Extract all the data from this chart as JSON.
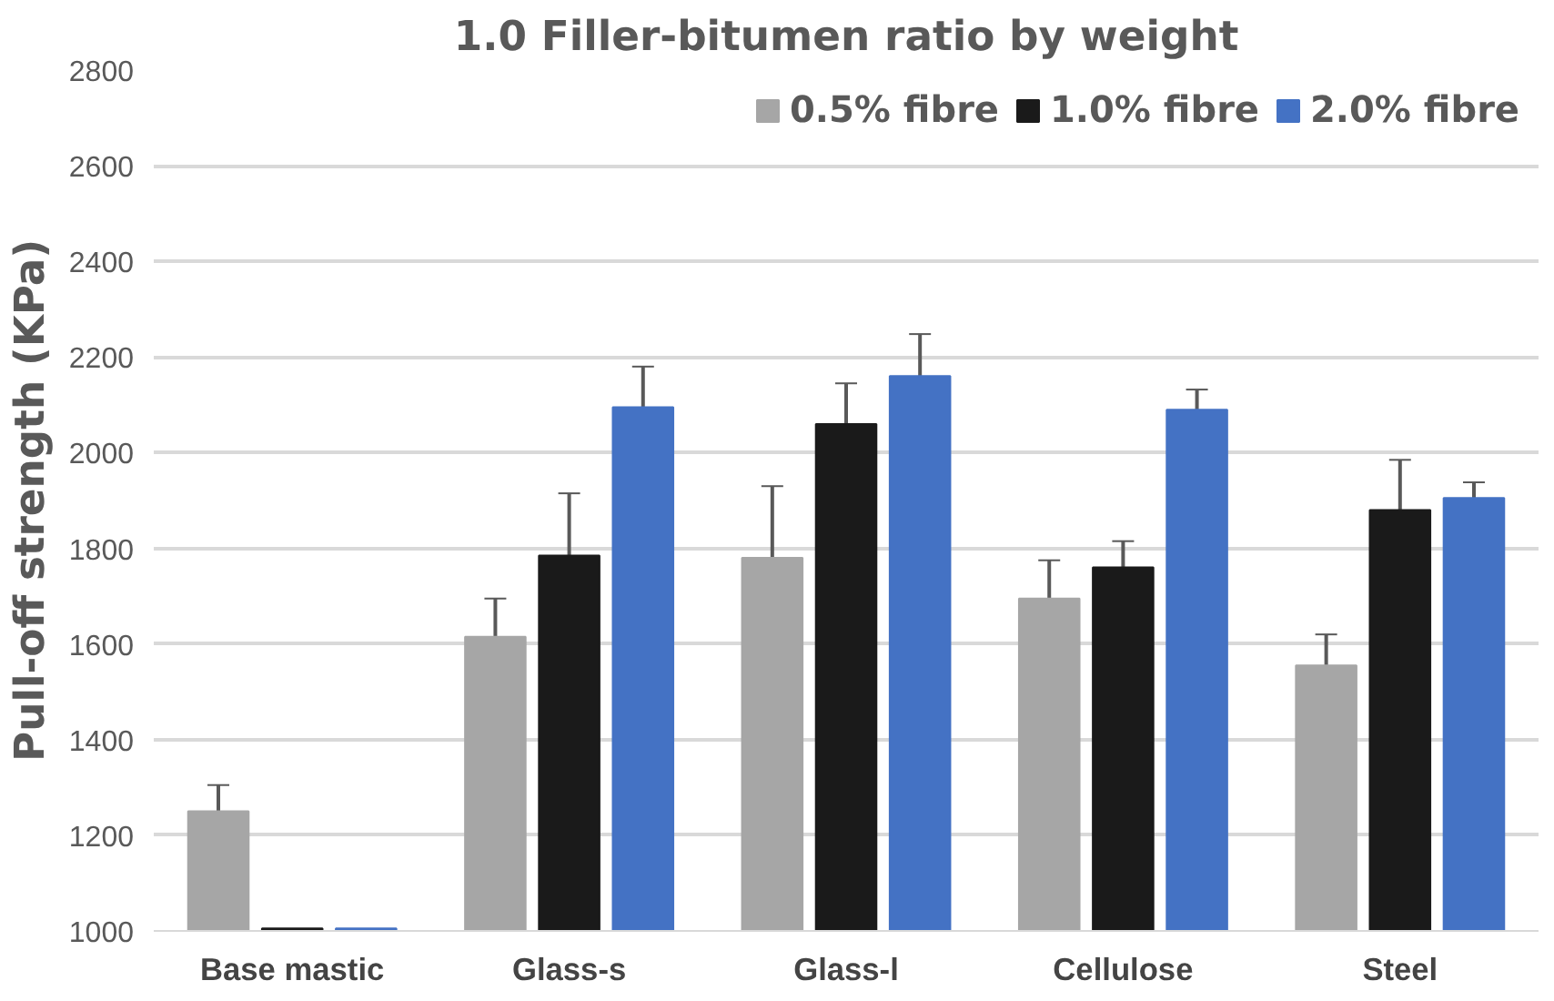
{
  "chart_data": {
    "type": "bar",
    "title": "1.0 Filler-bitumen ratio by weight",
    "ylabel": "Pull-off strength (KPa)",
    "categories": [
      "Base mastic",
      "Glass-s",
      "Glass-l",
      "Cellulose",
      "Steel"
    ],
    "series": [
      {
        "name": "0.5% fibre",
        "color": "#a6a6a6",
        "values": [
          1250,
          1615,
          1780,
          1695,
          1555
        ],
        "errors": [
          55,
          80,
          150,
          80,
          65
        ]
      },
      {
        "name": "1.0% fibre",
        "color": "#1a1a1a",
        "values": [
          1005,
          1785,
          2060,
          1760,
          1880
        ],
        "errors": [
          null,
          130,
          85,
          55,
          105
        ]
      },
      {
        "name": "2.0% fibre",
        "color": "#4472c4",
        "values": [
          1005,
          2095,
          2160,
          2090,
          1905
        ],
        "errors": [
          null,
          85,
          88,
          42,
          33
        ]
      }
    ],
    "ylim": [
      1000,
      2800
    ],
    "yticks": [
      1000,
      1200,
      1400,
      1600,
      1800,
      2000,
      2200,
      2400,
      2600,
      2800
    ],
    "grid": "y",
    "legend": "top right"
  }
}
